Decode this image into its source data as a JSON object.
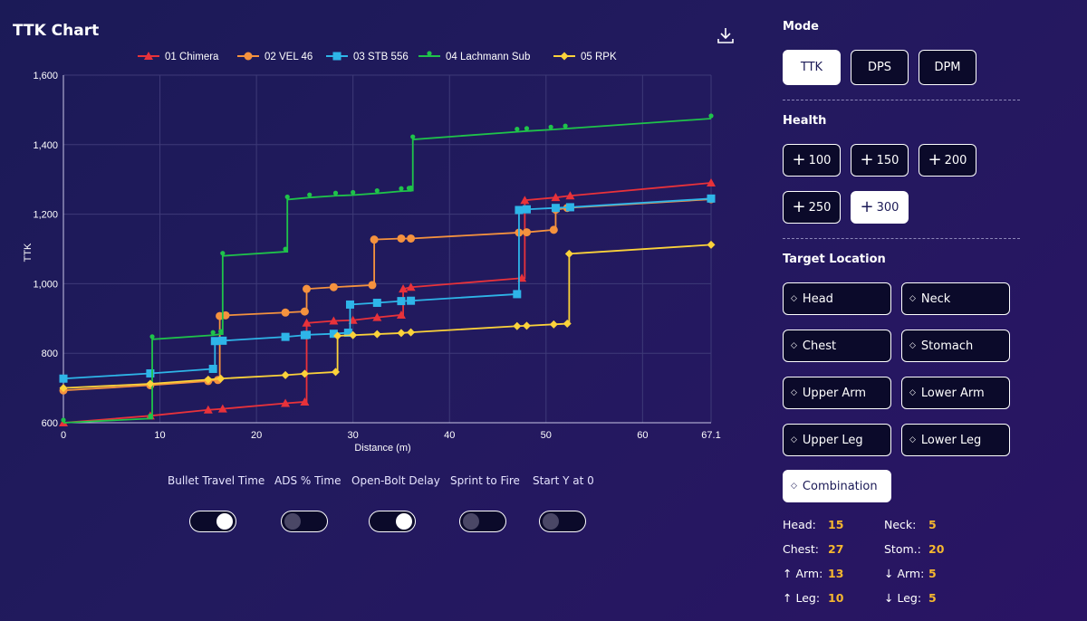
{
  "header": {
    "title": "TTK Chart"
  },
  "chart_data": {
    "type": "line",
    "title": "TTK Chart",
    "xlabel": "Distance (m)",
    "ylabel": "TTK",
    "xlim": [
      0,
      67.1
    ],
    "ylim": [
      600,
      1600
    ],
    "x_ticks": [
      0,
      10,
      20,
      30,
      40,
      50,
      60,
      67.1
    ],
    "x_tick_labels": [
      "0",
      "10",
      "20",
      "30",
      "40",
      "50",
      "60",
      "67.1"
    ],
    "y_ticks": [
      600,
      800,
      1000,
      1200,
      1400,
      1600
    ],
    "y_tick_labels": [
      "600",
      "800",
      "1,000",
      "1,200",
      "1,400",
      "1,600"
    ],
    "grid": true,
    "legend_position": "top",
    "step": true,
    "series": [
      {
        "name": "01 Chimera",
        "color": "#e8323a",
        "marker": "triangle",
        "points": [
          [
            0,
            600
          ],
          [
            9,
            620
          ],
          [
            15,
            637
          ],
          [
            16.5,
            640
          ],
          [
            23,
            656
          ],
          [
            25,
            660
          ],
          [
            25.2,
            887
          ],
          [
            28,
            893
          ],
          [
            30,
            895
          ],
          [
            32.5,
            903
          ],
          [
            35,
            910
          ],
          [
            35.2,
            985
          ],
          [
            36,
            990
          ],
          [
            47.5,
            1016
          ],
          [
            47.8,
            1240
          ],
          [
            51,
            1248
          ],
          [
            52.5,
            1253
          ],
          [
            67.1,
            1290
          ]
        ]
      },
      {
        "name": "02 VEL 46",
        "color": "#f5923e",
        "marker": "circle",
        "points": [
          [
            0,
            693
          ],
          [
            9,
            708
          ],
          [
            15,
            720
          ],
          [
            16,
            723
          ],
          [
            16.2,
            907
          ],
          [
            16.8,
            909
          ],
          [
            23,
            917
          ],
          [
            25,
            920
          ],
          [
            25.2,
            985
          ],
          [
            28,
            990
          ],
          [
            32,
            996
          ],
          [
            32.2,
            1127
          ],
          [
            35,
            1130
          ],
          [
            36,
            1130
          ],
          [
            47.2,
            1147
          ],
          [
            48,
            1148
          ],
          [
            50.8,
            1155
          ],
          [
            51,
            1213
          ],
          [
            52.2,
            1218
          ],
          [
            67.1,
            1243
          ]
        ]
      },
      {
        "name": "03 STB 556",
        "color": "#2eb5e8",
        "marker": "square",
        "points": [
          [
            0,
            727
          ],
          [
            9,
            742
          ],
          [
            15.5,
            755
          ],
          [
            15.7,
            835
          ],
          [
            16.5,
            836
          ],
          [
            23,
            847
          ],
          [
            25,
            852
          ],
          [
            25.2,
            853
          ],
          [
            28,
            856
          ],
          [
            29.5,
            859
          ],
          [
            29.7,
            940
          ],
          [
            32.5,
            945
          ],
          [
            35,
            950
          ],
          [
            36,
            951
          ],
          [
            47,
            970
          ],
          [
            47.2,
            1212
          ],
          [
            48,
            1214
          ],
          [
            51,
            1218
          ],
          [
            52.5,
            1220
          ],
          [
            67.1,
            1245
          ]
        ]
      },
      {
        "name": "04 Lachmann Sub",
        "color": "#1fc34a",
        "marker": "pin",
        "points": [
          [
            0,
            600
          ],
          [
            9,
            612
          ],
          [
            9.2,
            840
          ],
          [
            15.5,
            852
          ],
          [
            16.3,
            855
          ],
          [
            16.5,
            1080
          ],
          [
            23,
            1092
          ],
          [
            23.2,
            1242
          ],
          [
            25.5,
            1248
          ],
          [
            28.2,
            1253
          ],
          [
            30,
            1255
          ],
          [
            32.5,
            1260
          ],
          [
            35,
            1266
          ],
          [
            35.8,
            1267
          ],
          [
            36,
            1268
          ],
          [
            36.2,
            1415
          ],
          [
            47,
            1437
          ],
          [
            48,
            1439
          ],
          [
            50.5,
            1443
          ],
          [
            52,
            1446
          ],
          [
            67.1,
            1475
          ]
        ]
      },
      {
        "name": "05 RPK",
        "color": "#fbd23a",
        "marker": "diamond",
        "points": [
          [
            0,
            700
          ],
          [
            9,
            712
          ],
          [
            15,
            724
          ],
          [
            16.3,
            727
          ],
          [
            23,
            737
          ],
          [
            25,
            741
          ],
          [
            28.2,
            746
          ],
          [
            28.4,
            850
          ],
          [
            30,
            852
          ],
          [
            32.5,
            855
          ],
          [
            35,
            858
          ],
          [
            36,
            860
          ],
          [
            47,
            878
          ],
          [
            48,
            879
          ],
          [
            50.8,
            883
          ],
          [
            52.2,
            885
          ],
          [
            52.4,
            1086
          ],
          [
            67.1,
            1112
          ]
        ]
      }
    ]
  },
  "toggles": [
    {
      "label": "Bullet Travel Time",
      "on": true
    },
    {
      "label": "ADS % Time",
      "on": false
    },
    {
      "label": "Open-Bolt Delay",
      "on": true
    },
    {
      "label": "Sprint to Fire",
      "on": false
    },
    {
      "label": "Start Y at 0",
      "on": false
    }
  ],
  "sidebar": {
    "mode_title": "Mode",
    "modes": [
      {
        "label": "TTK",
        "active": true
      },
      {
        "label": "DPS",
        "active": false
      },
      {
        "label": "DPM",
        "active": false
      }
    ],
    "health_title": "Health",
    "health": [
      {
        "label": "100",
        "active": false
      },
      {
        "label": "150",
        "active": false
      },
      {
        "label": "200",
        "active": false
      },
      {
        "label": "250",
        "active": false
      },
      {
        "label": "300",
        "active": true
      }
    ],
    "location_title": "Target Location",
    "locations": [
      {
        "label": "Head",
        "active": false
      },
      {
        "label": "Neck",
        "active": false
      },
      {
        "label": "Chest",
        "active": false
      },
      {
        "label": "Stomach",
        "active": false
      },
      {
        "label": "Upper Arm",
        "active": false
      },
      {
        "label": "Lower Arm",
        "active": false
      },
      {
        "label": "Upper Leg",
        "active": false
      },
      {
        "label": "Lower Leg",
        "active": false
      },
      {
        "label": "Combination",
        "active": true
      }
    ],
    "stats": [
      {
        "label": "Head:",
        "value": "15"
      },
      {
        "label": "Neck:",
        "value": "5"
      },
      {
        "label": "Chest:",
        "value": "27"
      },
      {
        "label": "Stom.:",
        "value": "20"
      },
      {
        "label": "↑ Arm:",
        "value": "13"
      },
      {
        "label": "↓ Arm:",
        "value": "5"
      },
      {
        "label": "↑ Leg:",
        "value": "10"
      },
      {
        "label": "↓ Leg:",
        "value": "5"
      }
    ]
  }
}
